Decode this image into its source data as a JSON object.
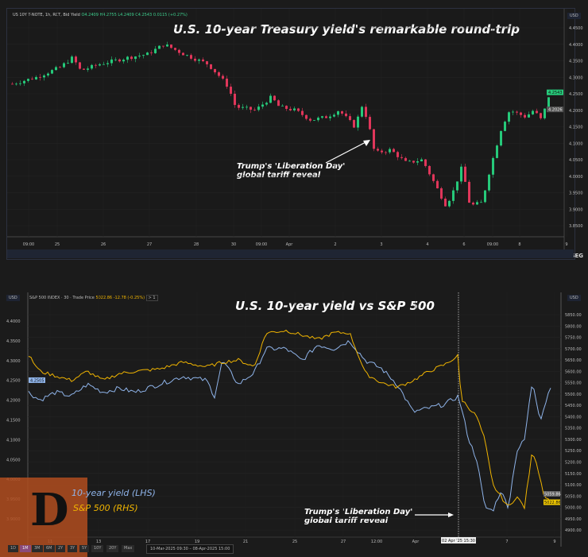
{
  "chart_data": [
    {
      "type": "candlestick",
      "title": "U.S. 10-year Treasury yield's remarkable round-trip",
      "legend_line": {
        "symbol": "US 10Y T-NOTE, 1h, RCT, Bid Yield",
        "open": "O4.2409",
        "high": "H4.2755",
        "low": "L4.2409",
        "close": "C4.2543",
        "change": "0.0115 (+0.27%)"
      },
      "currency": "USD",
      "ylim": [
        3.82,
        4.47
      ],
      "yticks": [
        "4.4500",
        "4.4000",
        "4.3500",
        "4.3000",
        "4.2500",
        "4.2000",
        "4.1500",
        "4.1000",
        "4.0500",
        "4.0000",
        "3.9500",
        "3.9000",
        "3.8500"
      ],
      "xticks": [
        "09:00",
        "25",
        "26",
        "27",
        "28",
        "30",
        "09:00",
        "Apr",
        "2",
        "3",
        "4",
        "6",
        "09:00",
        "8",
        "9"
      ],
      "last_price": "4.2543",
      "ref_price": "4.2026",
      "close_path": [
        [
          0,
          4.28
        ],
        [
          30,
          4.3
        ],
        [
          60,
          4.33
        ],
        [
          76,
          4.36
        ],
        [
          86,
          4.32
        ],
        [
          110,
          4.34
        ],
        [
          146,
          4.36
        ],
        [
          170,
          4.37
        ],
        [
          191,
          4.4
        ],
        [
          216,
          4.37
        ],
        [
          246,
          4.34
        ],
        [
          262,
          4.3
        ],
        [
          272,
          4.27
        ],
        [
          281,
          4.21
        ],
        [
          306,
          4.2
        ],
        [
          326,
          4.24
        ],
        [
          336,
          4.21
        ],
        [
          356,
          4.2
        ],
        [
          376,
          4.17
        ],
        [
          396,
          4.18
        ],
        [
          411,
          4.2
        ],
        [
          431,
          4.15
        ],
        [
          441,
          4.22
        ],
        [
          451,
          4.13
        ],
        [
          456,
          4.07
        ],
        [
          476,
          4.08
        ],
        [
          496,
          4.04
        ],
        [
          516,
          4.05
        ],
        [
          531,
          3.98
        ],
        [
          546,
          3.91
        ],
        [
          556,
          3.96
        ],
        [
          566,
          4.03
        ],
        [
          576,
          3.91
        ],
        [
          591,
          3.92
        ],
        [
          601,
          4.02
        ],
        [
          616,
          4.15
        ],
        [
          626,
          4.2
        ],
        [
          646,
          4.18
        ],
        [
          656,
          4.2
        ],
        [
          666,
          4.17
        ],
        [
          676,
          4.25
        ]
      ],
      "annotation": "Trump's 'Liberation Day'\nglobal tariff reveal",
      "source": "LSEG"
    },
    {
      "type": "line",
      "title": "U.S. 10-year yield vs S&P 500",
      "header": {
        "currency": "USD",
        "symbol": "S&P 500 INDEX · 30 · Trade Price",
        "price": "5022.86",
        "change": "-12.78 (-0.25%)",
        "more": "> 1"
      },
      "left_axis": {
        "ylim": [
          3.84,
          4.44
        ],
        "ticks": [
          "4.4000",
          "4.3500",
          "4.3000",
          "4.2500",
          "4.2000",
          "4.1500",
          "4.1000",
          "4.0500",
          "4.0000",
          "3.9500",
          "3.9000"
        ],
        "marker": "4.2505"
      },
      "right_axis": {
        "ylim": [
          4870,
          5870
        ],
        "ticks": [
          "5850.00",
          "5800.00",
          "5750.00",
          "5700.00",
          "5650.00",
          "5600.00",
          "5550.00",
          "5500.00",
          "5450.00",
          "5400.00",
          "5350.00",
          "5300.00",
          "5250.00",
          "5200.00",
          "5150.00",
          "5100.00",
          "5050.00",
          "5000.00",
          "4950.00",
          "4900.00"
        ],
        "marker_grey": "5059.86",
        "marker_yellow": "5022.86"
      },
      "xticks": [
        "11",
        "13",
        "17",
        "19",
        "21",
        "25",
        "27",
        "12:00",
        "Apr",
        "7",
        "9"
      ],
      "crosshair_label": "02 Apr '25  15:30",
      "series": [
        {
          "name": "10-year yield (LHS)",
          "color": "#8fb4ea",
          "points": [
            [
              0,
              4.22
            ],
            [
              14,
              4.2
            ],
            [
              34,
              4.22
            ],
            [
              54,
              4.21
            ],
            [
              74,
              4.24
            ],
            [
              94,
              4.22
            ],
            [
              114,
              4.23
            ],
            [
              134,
              4.22
            ],
            [
              164,
              4.24
            ],
            [
              194,
              4.26
            ],
            [
              224,
              4.25
            ],
            [
              234,
              4.21
            ],
            [
              244,
              4.3
            ],
            [
              264,
              4.24
            ],
            [
              284,
              4.27
            ],
            [
              299,
              4.33
            ],
            [
              324,
              4.33
            ],
            [
              344,
              4.3
            ],
            [
              364,
              4.34
            ],
            [
              384,
              4.33
            ],
            [
              404,
              4.35
            ],
            [
              424,
              4.3
            ],
            [
              444,
              4.28
            ],
            [
              464,
              4.24
            ],
            [
              484,
              4.17
            ],
            [
              504,
              4.18
            ],
            [
              524,
              4.19
            ],
            [
              541,
              4.21
            ],
            [
              554,
              4.1
            ],
            [
              564,
              4.05
            ],
            [
              574,
              3.93
            ],
            [
              584,
              3.92
            ],
            [
              594,
              3.97
            ],
            [
              604,
              3.93
            ],
            [
              614,
              4.07
            ],
            [
              624,
              4.1
            ],
            [
              634,
              4.25
            ],
            [
              644,
              4.15
            ],
            [
              659,
              4.25
            ]
          ]
        },
        {
          "name": "S&P 500 (RHS)",
          "color": "#f0b400",
          "points": [
            [
              0,
              5670
            ],
            [
              14,
              5600
            ],
            [
              34,
              5580
            ],
            [
              54,
              5560
            ],
            [
              74,
              5600
            ],
            [
              94,
              5560
            ],
            [
              114,
              5590
            ],
            [
              134,
              5600
            ],
            [
              164,
              5610
            ],
            [
              194,
              5640
            ],
            [
              224,
              5620
            ],
            [
              244,
              5640
            ],
            [
              264,
              5650
            ],
            [
              284,
              5620
            ],
            [
              299,
              5770
            ],
            [
              324,
              5780
            ],
            [
              344,
              5760
            ],
            [
              364,
              5740
            ],
            [
              384,
              5770
            ],
            [
              404,
              5770
            ],
            [
              424,
              5590
            ],
            [
              444,
              5550
            ],
            [
              464,
              5530
            ],
            [
              484,
              5560
            ],
            [
              504,
              5600
            ],
            [
              524,
              5630
            ],
            [
              541,
              5670
            ],
            [
              544,
              5480
            ],
            [
              564,
              5400
            ],
            [
              574,
              5300
            ],
            [
              584,
              5100
            ],
            [
              594,
              5050
            ],
            [
              604,
              5000
            ],
            [
              614,
              5050
            ],
            [
              624,
              5000
            ],
            [
              634,
              5250
            ],
            [
              639,
              5200
            ],
            [
              649,
              5050
            ],
            [
              659,
              5020
            ]
          ]
        }
      ],
      "annotation": "Trump's 'Liberation Day'\nglobal tariff reveal",
      "range_buttons": [
        "1D",
        "1M",
        "3M",
        "6M",
        "2Y",
        "3Y",
        "5Y",
        "10Y",
        "20Y",
        "Max"
      ],
      "active_range": "1M",
      "date_range": "10-Mar-2025 09:30  –  08-Apr-2025 15:00"
    }
  ],
  "logo_letter": "D"
}
